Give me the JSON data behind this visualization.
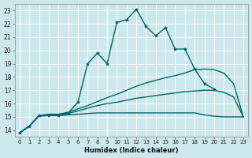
{
  "xlabel": "Humidex (Indice chaleur)",
  "bg_color": "#cce8ec",
  "grid_color": "#ffffff",
  "line_color": "#006666",
  "xlim": [
    -0.5,
    23.5
  ],
  "ylim": [
    13.5,
    23.5
  ],
  "xticks": [
    0,
    1,
    2,
    3,
    4,
    5,
    6,
    7,
    8,
    9,
    10,
    11,
    12,
    13,
    14,
    15,
    16,
    17,
    18,
    19,
    20,
    21,
    22,
    23
  ],
  "yticks": [
    14,
    15,
    16,
    17,
    18,
    19,
    20,
    21,
    22,
    23
  ],
  "series": [
    {
      "x": [
        0,
        1,
        2,
        3,
        4,
        5,
        6,
        7,
        8,
        9,
        10,
        11,
        12,
        13,
        14,
        15,
        16,
        17,
        18,
        19,
        20
      ],
      "y": [
        13.8,
        14.3,
        15.1,
        15.1,
        15.1,
        15.3,
        16.1,
        19.0,
        19.8,
        19.0,
        22.1,
        22.3,
        23.1,
        21.8,
        21.1,
        21.7,
        20.1,
        20.1,
        18.6,
        17.5,
        17.1
      ],
      "marker": true,
      "linewidth": 1.0
    },
    {
      "x": [
        0,
        1,
        2,
        3,
        4,
        5,
        6,
        7,
        8,
        9,
        10,
        11,
        12,
        13,
        14,
        15,
        16,
        17,
        18,
        19,
        20,
        21,
        22,
        23
      ],
      "y": [
        13.8,
        14.3,
        15.1,
        15.2,
        15.2,
        15.35,
        15.6,
        15.85,
        16.15,
        16.45,
        16.7,
        17.0,
        17.3,
        17.55,
        17.75,
        17.95,
        18.1,
        18.3,
        18.55,
        18.6,
        18.55,
        18.3,
        17.5,
        15.0
      ],
      "marker": false,
      "linewidth": 1.0
    },
    {
      "x": [
        0,
        1,
        2,
        3,
        4,
        5,
        6,
        7,
        8,
        9,
        10,
        11,
        12,
        13,
        14,
        15,
        16,
        17,
        18,
        19,
        20,
        21,
        22,
        23
      ],
      "y": [
        13.8,
        14.3,
        15.1,
        15.15,
        15.15,
        15.25,
        15.45,
        15.65,
        15.85,
        16.0,
        16.1,
        16.25,
        16.4,
        16.5,
        16.6,
        16.7,
        16.8,
        16.9,
        16.95,
        17.0,
        17.0,
        16.85,
        16.5,
        15.0
      ],
      "marker": false,
      "linewidth": 1.0
    },
    {
      "x": [
        0,
        1,
        2,
        3,
        4,
        5,
        6,
        7,
        8,
        9,
        10,
        11,
        12,
        13,
        14,
        15,
        16,
        17,
        18,
        19,
        20,
        21,
        22,
        23
      ],
      "y": [
        13.8,
        14.3,
        15.05,
        15.1,
        15.1,
        15.15,
        15.2,
        15.25,
        15.3,
        15.3,
        15.3,
        15.3,
        15.3,
        15.3,
        15.3,
        15.3,
        15.3,
        15.3,
        15.3,
        15.15,
        15.05,
        15.0,
        15.0,
        15.0
      ],
      "marker": false,
      "linewidth": 1.0
    }
  ]
}
